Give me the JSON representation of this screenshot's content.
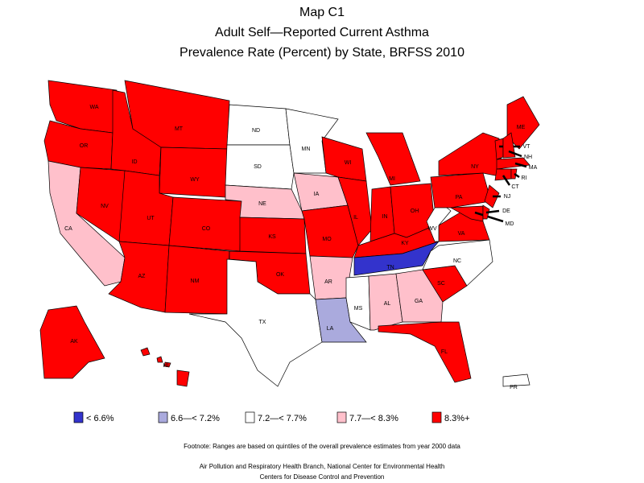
{
  "title": [
    "Map C1",
    "Adult Self—Reported Current Asthma",
    "Prevalence Rate (Percent) by State, BRFSS 2010"
  ],
  "legend": {
    "labels": [
      "< 6.6%",
      "6.6—< 7.2%",
      "7.2—< 7.7%",
      "7.7—< 8.3%",
      "8.3%+"
    ],
    "colors": [
      "#3333cc",
      "#aaaadd",
      "#ffffff",
      "#ffc0cb",
      "#ff0000"
    ]
  },
  "states": [
    {
      "label": "WA",
      "category": 4
    },
    {
      "label": "OR",
      "category": 4
    },
    {
      "label": "CA",
      "category": 3
    },
    {
      "label": "NV",
      "category": 4
    },
    {
      "label": "ID",
      "category": 4
    },
    {
      "label": "MT",
      "category": 4
    },
    {
      "label": "WY",
      "category": 4
    },
    {
      "label": "UT",
      "category": 4
    },
    {
      "label": "CO",
      "category": 4
    },
    {
      "label": "AZ",
      "category": 4
    },
    {
      "label": "NM",
      "category": 4
    },
    {
      "label": "ND",
      "category": 2
    },
    {
      "label": "SD",
      "category": 2
    },
    {
      "label": "NE",
      "category": 3
    },
    {
      "label": "KS",
      "category": 4
    },
    {
      "label": "OK",
      "category": 4
    },
    {
      "label": "TX",
      "category": 2
    },
    {
      "label": "MN",
      "category": 2
    },
    {
      "label": "IA",
      "category": 3
    },
    {
      "label": "MO",
      "category": 4
    },
    {
      "label": "AR",
      "category": 3
    },
    {
      "label": "LA",
      "category": 1
    },
    {
      "label": "WI",
      "category": 4
    },
    {
      "label": "IL",
      "category": 4
    },
    {
      "label": "MI",
      "category": 4
    },
    {
      "label": "IN",
      "category": 4
    },
    {
      "label": "OH",
      "category": 4
    },
    {
      "label": "KY",
      "category": 4
    },
    {
      "label": "TN",
      "category": 0
    },
    {
      "label": "MS",
      "category": 2
    },
    {
      "label": "AL",
      "category": 3
    },
    {
      "label": "GA",
      "category": 3
    },
    {
      "label": "FL",
      "category": 4
    },
    {
      "label": "SC",
      "category": 4
    },
    {
      "label": "NC",
      "category": 2
    },
    {
      "label": "VA",
      "category": 4
    },
    {
      "label": "WV",
      "category": 2
    },
    {
      "label": "PA",
      "category": 4
    },
    {
      "label": "NY",
      "category": 4
    },
    {
      "label": "MD",
      "category": 4
    },
    {
      "label": "DE",
      "category": 4
    },
    {
      "label": "NJ",
      "category": 4
    },
    {
      "label": "ME",
      "category": 4
    },
    {
      "label": "VT",
      "category": 4
    },
    {
      "label": "NH",
      "category": 4
    },
    {
      "label": "MA",
      "category": 4
    },
    {
      "label": "CT",
      "category": 4
    },
    {
      "label": "RI",
      "category": 4
    },
    {
      "label": "AK",
      "category": 4
    },
    {
      "label": "HI",
      "category": 4
    },
    {
      "label": "PR",
      "category": 2
    }
  ],
  "footnote": "Footnote: Ranges are based on quintiles of the overall prevalence estimates from year 2000 data",
  "credits": [
    "Air Pollution and Respiratory Health Branch, National Center for Environmental Health",
    "Centers for Disease Control and Prevention"
  ]
}
